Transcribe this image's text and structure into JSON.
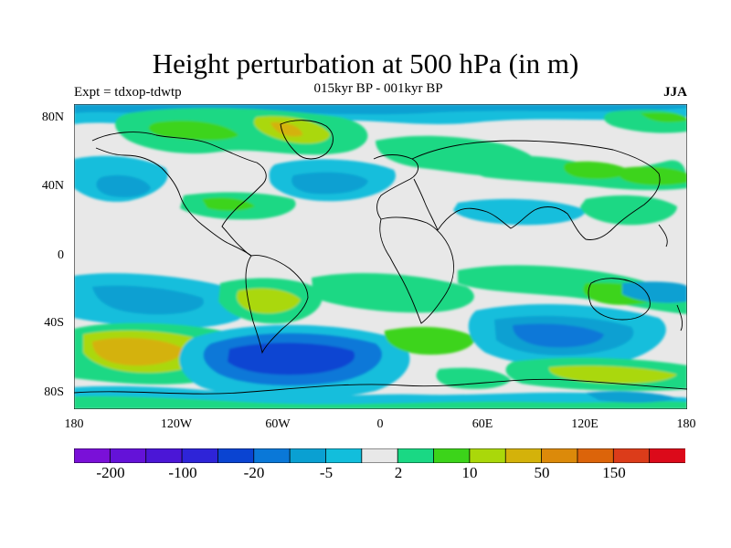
{
  "title": "Height perturbation at 500 hPa (in m)",
  "left_subtitle": "Expt = tdxop-tdwtp",
  "center_subtitle": "015kyr BP - 001kyr BP",
  "right_subtitle": "JJA",
  "lat_ticks": [
    "80N",
    "40N",
    "0",
    "40S",
    "80S"
  ],
  "lon_ticks": [
    "180",
    "120W",
    "60W",
    "0",
    "60E",
    "120E",
    "180"
  ],
  "colorbar": {
    "colors": [
      "#7a10d8",
      "#6412d8",
      "#4b16d6",
      "#2e24d8",
      "#0a44d2",
      "#0a78d8",
      "#0aa0d2",
      "#12bedc",
      "#e8e8e8",
      "#1ad884",
      "#3cd41a",
      "#aad80a",
      "#d4b20a",
      "#dc8a0a",
      "#dc640a",
      "#dc3c1a",
      "#dc0a1a"
    ],
    "labels": [
      "-200",
      "-100",
      "-20",
      "-5",
      "2",
      "10",
      "50",
      "150"
    ]
  }
}
